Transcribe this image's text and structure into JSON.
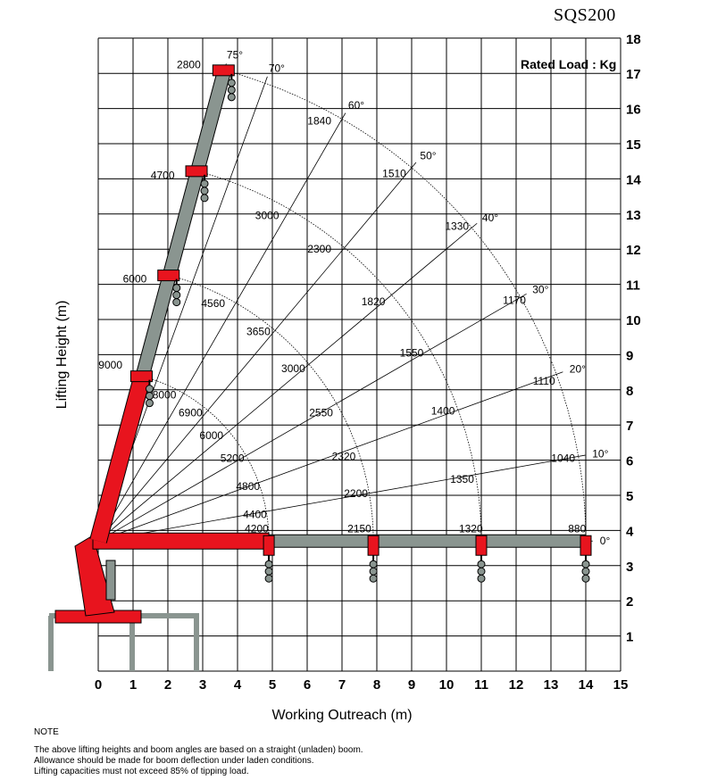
{
  "model": "SQS200",
  "rated_load_label": "Rated Load : Kg",
  "note": {
    "heading": "NOTE",
    "lines": [
      "The above lifting heights and boom angles are based on a straight (unladen) boom.",
      "Allowance should be made for boom deflection under laden conditions.",
      "Lifting capacities must not exceed 85% of tipping load."
    ]
  },
  "colors": {
    "boom_red": "#e8141e",
    "boom_grey": "#8a9590",
    "grid": "#000000"
  },
  "chart_data": {
    "type": "range-chart",
    "xlabel": "Working Outreach (m)",
    "ylabel": "Lifting Height (m)",
    "xlim": [
      0,
      15
    ],
    "ylim": [
      0,
      18
    ],
    "x_ticks": [
      0,
      1,
      2,
      3,
      4,
      5,
      6,
      7,
      8,
      9,
      10,
      11,
      12,
      13,
      14,
      15
    ],
    "y_ticks": [
      1,
      2,
      3,
      4,
      5,
      6,
      7,
      8,
      9,
      10,
      11,
      12,
      13,
      14,
      15,
      16,
      17,
      18
    ],
    "boom_pivot": [
      0,
      3.7
    ],
    "angles": [
      "0°",
      "10°",
      "20°",
      "30°",
      "40°",
      "50°",
      "60°",
      "70°",
      "75°"
    ],
    "arcs": [
      {
        "radius": 4.9,
        "labels": [
          {
            "text": "4200",
            "x": 4.55,
            "y": 3.95
          },
          {
            "text": "4400",
            "x": 4.5,
            "y": 4.35
          },
          {
            "text": "4800",
            "x": 4.3,
            "y": 5.15
          },
          {
            "text": "5200",
            "x": 3.85,
            "y": 5.95
          },
          {
            "text": "6000",
            "x": 3.25,
            "y": 6.6
          },
          {
            "text": "6900",
            "x": 2.65,
            "y": 7.25
          },
          {
            "text": "8000",
            "x": 1.9,
            "y": 7.75
          },
          {
            "text": "9000",
            "x": 0.35,
            "y": 8.6
          }
        ]
      },
      {
        "radius": 7.9,
        "labels": [
          {
            "text": "2150",
            "x": 7.5,
            "y": 3.95
          },
          {
            "text": "2200",
            "x": 7.4,
            "y": 4.95
          },
          {
            "text": "2320",
            "x": 7.05,
            "y": 6.0
          },
          {
            "text": "2550",
            "x": 6.4,
            "y": 7.25
          },
          {
            "text": "3000",
            "x": 5.6,
            "y": 8.5
          },
          {
            "text": "3650",
            "x": 4.6,
            "y": 9.55
          },
          {
            "text": "4560",
            "x": 3.3,
            "y": 10.35
          },
          {
            "text": "6000",
            "x": 1.05,
            "y": 11.05
          }
        ]
      },
      {
        "radius": 11.0,
        "labels": [
          {
            "text": "1320",
            "x": 10.7,
            "y": 3.95
          },
          {
            "text": "1350",
            "x": 10.45,
            "y": 5.35
          },
          {
            "text": "1400",
            "x": 9.9,
            "y": 7.3
          },
          {
            "text": "1550",
            "x": 9.0,
            "y": 8.95
          },
          {
            "text": "1820",
            "x": 7.9,
            "y": 10.4
          },
          {
            "text": "2300",
            "x": 6.35,
            "y": 11.9
          },
          {
            "text": "3000",
            "x": 4.85,
            "y": 12.85
          },
          {
            "text": "4700",
            "x": 1.85,
            "y": 14.0
          }
        ]
      },
      {
        "radius": 14.0,
        "labels": [
          {
            "text": "880",
            "x": 13.75,
            "y": 3.95
          },
          {
            "text": "1040",
            "x": 13.35,
            "y": 5.95
          },
          {
            "text": "1110",
            "x": 12.8,
            "y": 8.15
          },
          {
            "text": "1170",
            "x": 11.95,
            "y": 10.45
          },
          {
            "text": "1330",
            "x": 10.3,
            "y": 12.55
          },
          {
            "text": "1510",
            "x": 8.5,
            "y": 14.05
          },
          {
            "text": "1840",
            "x": 6.35,
            "y": 15.55
          },
          {
            "text": "2800",
            "x": 2.6,
            "y": 17.15
          }
        ]
      }
    ]
  }
}
